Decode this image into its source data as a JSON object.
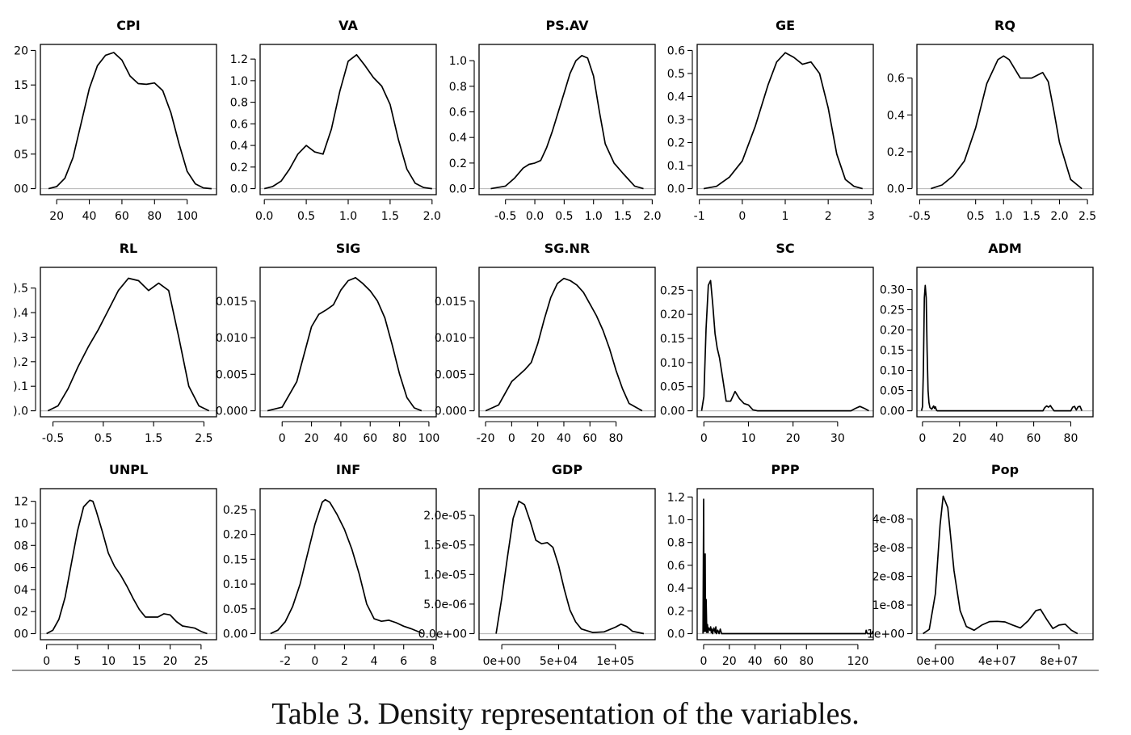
{
  "caption": "Table 3. Density representation of the variables.",
  "chart_data": [
    {
      "type": "line",
      "title": "CPI",
      "xlim": [
        10,
        118
      ],
      "ylim": [
        0,
        20
      ],
      "x_ticks": [
        20,
        40,
        60,
        80,
        100
      ],
      "x_tick_labels": [
        "20",
        "40",
        "60",
        "80",
        "100"
      ],
      "y_ticks": [
        0,
        5,
        10,
        15,
        20
      ],
      "y_tick_labels": [
        "00",
        "05",
        "10",
        "15",
        "20"
      ],
      "x": [
        15,
        20,
        25,
        30,
        35,
        40,
        45,
        50,
        55,
        60,
        65,
        70,
        75,
        80,
        85,
        90,
        95,
        100,
        105,
        110,
        115
      ],
      "y": [
        0,
        0.3,
        1.5,
        4.5,
        9.5,
        14.5,
        17.8,
        19.3,
        19.7,
        18.6,
        16.3,
        15.2,
        15.1,
        15.3,
        14.2,
        11,
        6.5,
        2.5,
        0.7,
        0.1,
        0
      ]
    },
    {
      "type": "line",
      "title": "VA",
      "xlim": [
        -0.05,
        2.05
      ],
      "ylim": [
        0,
        1.28
      ],
      "x_ticks": [
        0,
        0.5,
        1,
        1.5,
        2
      ],
      "x_tick_labels": [
        "0.0",
        "0.5",
        "1.0",
        "1.5",
        "2.0"
      ],
      "y_ticks": [
        0,
        0.2,
        0.4,
        0.6,
        0.8,
        1.0,
        1.2
      ],
      "y_tick_labels": [
        "0.0",
        "0.2",
        "0.4",
        "0.6",
        "0.8",
        "1.0",
        "1.2"
      ],
      "x": [
        0,
        0.1,
        0.2,
        0.3,
        0.4,
        0.5,
        0.6,
        0.7,
        0.8,
        0.9,
        1.0,
        1.1,
        1.2,
        1.3,
        1.4,
        1.5,
        1.6,
        1.7,
        1.8,
        1.9,
        2.0
      ],
      "y": [
        0,
        0.02,
        0.07,
        0.18,
        0.32,
        0.4,
        0.34,
        0.32,
        0.55,
        0.9,
        1.18,
        1.24,
        1.14,
        1.03,
        0.95,
        0.78,
        0.45,
        0.18,
        0.05,
        0.01,
        0
      ]
    },
    {
      "type": "line",
      "title": "PS.AV",
      "xlim": [
        -0.95,
        2.05
      ],
      "ylim": [
        0,
        1.08
      ],
      "x_ticks": [
        -0.5,
        0,
        0.5,
        1,
        1.5,
        2
      ],
      "x_tick_labels": [
        "-0.5",
        "0.0",
        "0.5",
        "1.0",
        "1.5",
        "2.0"
      ],
      "y_ticks": [
        0,
        0.2,
        0.4,
        0.6,
        0.8,
        1.0
      ],
      "y_tick_labels": [
        "0.0",
        "0.2",
        "0.4",
        "0.6",
        "0.8",
        "1.0"
      ],
      "x": [
        -0.75,
        -0.5,
        -0.35,
        -0.2,
        -0.1,
        0,
        0.1,
        0.2,
        0.3,
        0.4,
        0.5,
        0.6,
        0.7,
        0.8,
        0.9,
        1.0,
        1.1,
        1.2,
        1.35,
        1.5,
        1.7,
        1.85
      ],
      "y": [
        0,
        0.02,
        0.08,
        0.16,
        0.19,
        0.2,
        0.22,
        0.32,
        0.45,
        0.6,
        0.75,
        0.9,
        1.0,
        1.04,
        1.02,
        0.88,
        0.6,
        0.35,
        0.2,
        0.12,
        0.02,
        0
      ]
    },
    {
      "type": "line",
      "title": "GE",
      "xlim": [
        -1.05,
        3.05
      ],
      "ylim": [
        0,
        0.6
      ],
      "x_ticks": [
        -1,
        0,
        1,
        2,
        3
      ],
      "x_tick_labels": [
        "-1",
        "0",
        "1",
        "2",
        "3"
      ],
      "y_ticks": [
        0,
        0.1,
        0.2,
        0.3,
        0.4,
        0.5,
        0.6
      ],
      "y_tick_labels": [
        "0.0",
        "0.1",
        "0.2",
        "0.3",
        "0.4",
        "0.5",
        "0.6"
      ],
      "x": [
        -0.9,
        -0.6,
        -0.3,
        0,
        0.3,
        0.6,
        0.8,
        1.0,
        1.2,
        1.4,
        1.6,
        1.8,
        2.0,
        2.2,
        2.4,
        2.6,
        2.8
      ],
      "y": [
        0,
        0.01,
        0.05,
        0.12,
        0.27,
        0.45,
        0.55,
        0.59,
        0.57,
        0.54,
        0.55,
        0.5,
        0.35,
        0.15,
        0.04,
        0.01,
        0
      ]
    },
    {
      "type": "line",
      "title": "RQ",
      "xlim": [
        -0.55,
        2.6
      ],
      "ylim": [
        0,
        0.75
      ],
      "x_ticks": [
        -0.5,
        0.5,
        1,
        1.5,
        2,
        2.5
      ],
      "x_tick_labels": [
        "-0.5",
        "0.5",
        "1.0",
        "1.5",
        "2.0",
        "2.5"
      ],
      "y_ticks": [
        0,
        0.2,
        0.4,
        0.6
      ],
      "y_tick_labels": [
        "0.0",
        "0.2",
        "0.4",
        "0.6"
      ],
      "x": [
        -0.3,
        -0.1,
        0.1,
        0.3,
        0.5,
        0.7,
        0.9,
        1.0,
        1.1,
        1.3,
        1.5,
        1.7,
        1.8,
        1.9,
        2.0,
        2.2,
        2.4
      ],
      "y": [
        0,
        0.02,
        0.07,
        0.15,
        0.33,
        0.57,
        0.7,
        0.72,
        0.7,
        0.6,
        0.6,
        0.63,
        0.58,
        0.42,
        0.25,
        0.05,
        0
      ]
    },
    {
      "type": "line",
      "title": "RL",
      "xlim": [
        -0.75,
        2.75
      ],
      "ylim": [
        0,
        0.56
      ],
      "x_ticks": [
        -0.5,
        0.5,
        1.5,
        2.5
      ],
      "x_tick_labels": [
        "-0.5",
        "0.5",
        "1.5",
        "2.5"
      ],
      "y_ticks": [
        0,
        0.1,
        0.2,
        0.3,
        0.4,
        0.5
      ],
      "y_tick_labels": [
        ").0",
        ").1",
        ").2",
        ").3",
        ").4",
        ").5"
      ],
      "x": [
        -0.6,
        -0.4,
        -0.2,
        0,
        0.2,
        0.4,
        0.6,
        0.8,
        1.0,
        1.2,
        1.4,
        1.6,
        1.8,
        2.0,
        2.2,
        2.4,
        2.6
      ],
      "y": [
        0,
        0.02,
        0.09,
        0.18,
        0.26,
        0.33,
        0.41,
        0.49,
        0.54,
        0.53,
        0.49,
        0.52,
        0.49,
        0.3,
        0.1,
        0.02,
        0
      ]
    },
    {
      "type": "line",
      "title": "SIG",
      "xlim": [
        -15,
        105
      ],
      "ylim": [
        0,
        0.0188
      ],
      "x_ticks": [
        0,
        20,
        40,
        60,
        80,
        100
      ],
      "x_tick_labels": [
        "0",
        "20",
        "40",
        "60",
        "80",
        "100"
      ],
      "y_ticks": [
        0,
        0.005,
        0.01,
        0.015
      ],
      "y_tick_labels": [
        "0.000",
        "0.005",
        "0.010",
        "0.015"
      ],
      "x": [
        -10,
        0,
        10,
        20,
        25,
        30,
        35,
        40,
        45,
        50,
        55,
        60,
        65,
        70,
        75,
        80,
        85,
        90,
        95
      ],
      "y": [
        0,
        0.0005,
        0.004,
        0.0115,
        0.0132,
        0.0138,
        0.0145,
        0.0165,
        0.0178,
        0.0182,
        0.0174,
        0.0164,
        0.015,
        0.0127,
        0.009,
        0.005,
        0.0018,
        0.0004,
        0
      ]
    },
    {
      "type": "line",
      "title": "SG.NR",
      "xlim": [
        -25,
        110
      ],
      "ylim": [
        0,
        0.0188
      ],
      "x_ticks": [
        -20,
        0,
        20,
        40,
        60,
        80
      ],
      "x_tick_labels": [
        "-20",
        "0",
        "20",
        "40",
        "60",
        "80"
      ],
      "y_ticks": [
        0,
        0.005,
        0.01,
        0.015
      ],
      "y_tick_labels": [
        "0.000",
        "0.005",
        "0.010",
        "0.015"
      ],
      "x": [
        -20,
        -10,
        0,
        10,
        15,
        20,
        25,
        30,
        35,
        40,
        45,
        50,
        55,
        60,
        65,
        70,
        75,
        80,
        85,
        90,
        100
      ],
      "y": [
        0,
        0.0008,
        0.004,
        0.0056,
        0.0066,
        0.0092,
        0.0125,
        0.0155,
        0.0174,
        0.0181,
        0.0178,
        0.0172,
        0.0162,
        0.0146,
        0.013,
        0.011,
        0.0085,
        0.0055,
        0.003,
        0.001,
        0
      ]
    },
    {
      "type": "line",
      "title": "SC",
      "xlim": [
        -1.5,
        38
      ],
      "ylim": [
        0,
        0.285
      ],
      "x_ticks": [
        0,
        10,
        20,
        30
      ],
      "x_tick_labels": [
        "0",
        "10",
        "20",
        "30"
      ],
      "y_ticks": [
        0,
        0.05,
        0.1,
        0.15,
        0.2,
        0.25
      ],
      "y_tick_labels": [
        "0.00",
        "0.05",
        "0.10",
        "0.15",
        "0.20",
        "0.25"
      ],
      "x": [
        -0.5,
        0,
        0.5,
        1,
        1.5,
        2,
        2.5,
        3,
        3.5,
        4,
        5,
        6,
        7,
        8,
        9,
        10,
        11,
        12,
        20,
        33,
        34,
        35,
        36,
        37
      ],
      "y": [
        0,
        0.03,
        0.17,
        0.26,
        0.27,
        0.22,
        0.16,
        0.13,
        0.11,
        0.08,
        0.02,
        0.02,
        0.04,
        0.025,
        0.015,
        0.012,
        0.002,
        0,
        0,
        0,
        0.005,
        0.009,
        0.005,
        0
      ]
    },
    {
      "type": "line",
      "title": "ADM",
      "xlim": [
        -3,
        92
      ],
      "ylim": [
        0,
        0.34
      ],
      "x_ticks": [
        0,
        20,
        40,
        60,
        80
      ],
      "x_tick_labels": [
        "0",
        "20",
        "40",
        "60",
        "80"
      ],
      "y_ticks": [
        0,
        0.05,
        0.1,
        0.15,
        0.2,
        0.25,
        0.3
      ],
      "y_tick_labels": [
        "0.00",
        "0.05",
        "0.10",
        "0.15",
        "0.20",
        "0.25",
        "0.30"
      ],
      "x": [
        -0.5,
        0,
        0.5,
        1,
        1.5,
        2,
        2.5,
        3,
        3.5,
        4,
        5,
        6,
        6.5,
        7,
        7.5,
        8,
        65,
        66,
        67,
        68,
        69,
        70,
        71,
        80,
        81,
        82,
        83,
        84,
        85,
        86
      ],
      "y": [
        0,
        0.01,
        0.1,
        0.28,
        0.31,
        0.28,
        0.15,
        0.05,
        0.02,
        0.008,
        0.004,
        0.012,
        0.006,
        0.01,
        0.002,
        0,
        0,
        0.008,
        0.012,
        0.009,
        0.013,
        0.006,
        0,
        0,
        0.009,
        0.011,
        0.002,
        0.01,
        0.011,
        0
      ]
    },
    {
      "type": "line",
      "title": "UNPL",
      "xlim": [
        -1,
        27.5
      ],
      "ylim": [
        0,
        12.6
      ],
      "x_ticks": [
        0,
        5,
        10,
        15,
        20,
        25
      ],
      "x_tick_labels": [
        "0",
        "5",
        "10",
        "15",
        "20",
        "25"
      ],
      "y_ticks": [
        0,
        2,
        4,
        6,
        8,
        10,
        12
      ],
      "y_tick_labels": [
        "00",
        "02",
        "04",
        "06",
        "08",
        "10",
        "12"
      ],
      "x": [
        0,
        1,
        2,
        3,
        4,
        5,
        6,
        7,
        7.5,
        8,
        9,
        10,
        11,
        12,
        13,
        14,
        15,
        16,
        17,
        18,
        19,
        20,
        21,
        22,
        23,
        24,
        25,
        26
      ],
      "y": [
        0,
        0.3,
        1.3,
        3.3,
        6.3,
        9.3,
        11.5,
        12.1,
        12,
        11.2,
        9.3,
        7.3,
        6.1,
        5.3,
        4.3,
        3.2,
        2.2,
        1.5,
        1.5,
        1.5,
        1.8,
        1.7,
        1.1,
        0.7,
        0.6,
        0.5,
        0.2,
        0
      ]
    },
    {
      "type": "line",
      "title": "INF",
      "xlim": [
        -3.7,
        8.2
      ],
      "ylim": [
        0,
        0.28
      ],
      "x_ticks": [
        -2,
        0,
        2,
        4,
        6,
        8
      ],
      "x_tick_labels": [
        "-2",
        "0",
        "2",
        "4",
        "6",
        "8"
      ],
      "y_ticks": [
        0,
        0.05,
        0.1,
        0.15,
        0.2,
        0.25
      ],
      "y_tick_labels": [
        "0.00",
        "0.05",
        "0.10",
        "0.15",
        "0.20",
        "0.25"
      ],
      "x": [
        -3,
        -2.5,
        -2,
        -1.5,
        -1,
        -0.5,
        0,
        0.5,
        0.7,
        1,
        1.5,
        2,
        2.5,
        3,
        3.5,
        4,
        4.5,
        5,
        5.5,
        6,
        6.5,
        7,
        7.3
      ],
      "y": [
        0,
        0.007,
        0.024,
        0.055,
        0.1,
        0.16,
        0.22,
        0.265,
        0.27,
        0.265,
        0.24,
        0.21,
        0.17,
        0.12,
        0.06,
        0.03,
        0.025,
        0.027,
        0.022,
        0.015,
        0.01,
        0.004,
        0
      ]
    },
    {
      "type": "line",
      "title": "GDP",
      "xlim": [
        -20000,
        135000
      ],
      "ylim": [
        0,
        2.35e-05
      ],
      "x_ticks": [
        0,
        50000,
        100000
      ],
      "x_tick_labels": [
        "0e+00",
        "5e+04",
        "1e+05"
      ],
      "y_ticks": [
        0,
        5e-06,
        1e-05,
        1.5e-05,
        2e-05
      ],
      "y_tick_labels": [
        "0.0e+00",
        "5.0e-06",
        "1.0e-05",
        "1.5e-05",
        "2.0e-05"
      ],
      "x": [
        -5000,
        0,
        5000,
        10000,
        15000,
        20000,
        25000,
        30000,
        35000,
        40000,
        45000,
        50000,
        55000,
        60000,
        65000,
        70000,
        80000,
        90000,
        100000,
        105000,
        110000,
        115000,
        125000
      ],
      "y": [
        0,
        6e-06,
        1.3e-05,
        1.95e-05,
        2.24e-05,
        2.18e-05,
        1.9e-05,
        1.58e-05,
        1.52e-05,
        1.54e-05,
        1.46e-05,
        1.15e-05,
        7.5e-06,
        4e-06,
        2e-06,
        8e-07,
        2e-07,
        3e-07,
        1.1e-06,
        1.6e-06,
        1.2e-06,
        4e-07,
        0
      ]
    },
    {
      "type": "line",
      "title": "PPP",
      "xlim": [
        -5,
        132
      ],
      "ylim": [
        0,
        1.22
      ],
      "x_ticks": [
        0,
        20,
        40,
        60,
        80,
        120
      ],
      "x_tick_labels": [
        "0",
        "20",
        "40",
        "60",
        "80",
        "120"
      ],
      "y_ticks": [
        0,
        0.2,
        0.4,
        0.6,
        0.8,
        1.0,
        1.2
      ],
      "y_tick_labels": [
        "0.0",
        "0.2",
        "0.4",
        "0.6",
        "0.8",
        "1.0",
        "1.2"
      ],
      "x": [
        -0.5,
        0,
        0.3,
        0.6,
        0.9,
        1.2,
        1.5,
        2,
        2.5,
        3,
        3.5,
        4,
        5,
        5.5,
        6,
        6.5,
        7,
        8,
        9,
        9.5,
        10,
        11,
        12,
        13,
        14,
        20,
        126,
        126.5,
        127,
        127.5,
        131,
        131.5,
        132
      ],
      "y": [
        0,
        1.18,
        0.02,
        0.5,
        0.02,
        0.7,
        0.02,
        0.3,
        0.01,
        0.08,
        0.01,
        0.05,
        0.03,
        0.06,
        0.01,
        0.04,
        0,
        0.05,
        0.01,
        0.06,
        0,
        0.03,
        0,
        0.04,
        0,
        0,
        0,
        0.03,
        0.01,
        0,
        0,
        0.02,
        0
      ]
    },
    {
      "type": "line",
      "title": "Pop",
      "xlim": [
        -12000000,
        102000000
      ],
      "ylim": [
        0,
        4.85e-08
      ],
      "x_ticks": [
        0,
        40000000,
        80000000
      ],
      "x_tick_labels": [
        "0e+00",
        "4e+07",
        "8e+07"
      ],
      "y_ticks": [
        0,
        1e-08,
        2e-08,
        3e-08,
        4e-08
      ],
      "y_tick_labels": [
        "1e+00",
        "1e-08",
        "2e-08",
        "3e-08",
        "4e-08"
      ],
      "x": [
        -8000000,
        -4000000,
        0,
        3000000,
        5000000,
        8000000,
        12000000,
        16000000,
        20000000,
        25000000,
        30000000,
        35000000,
        40000000,
        45000000,
        50000000,
        55000000,
        60000000,
        65000000,
        68000000,
        72000000,
        76000000,
        80000000,
        84000000,
        88000000,
        92000000
      ],
      "y": [
        0,
        1.5e-09,
        1.4e-08,
        3.8e-08,
        4.8e-08,
        4.4e-08,
        2.2e-08,
        8e-09,
        2.5e-09,
        1.2e-09,
        3e-09,
        4.2e-09,
        4.3e-09,
        4.1e-09,
        3e-09,
        2e-09,
        4.5e-09,
        8e-09,
        8.5e-09,
        5e-09,
        1.8e-09,
        3e-09,
        3.3e-09,
        1.2e-09,
        0
      ]
    }
  ]
}
